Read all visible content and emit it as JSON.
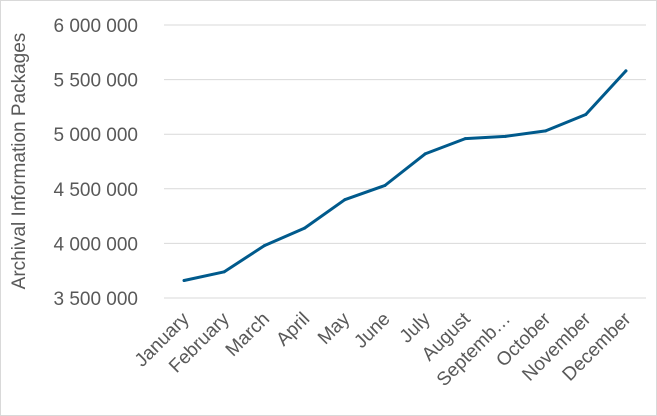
{
  "chart_data": {
    "type": "line",
    "categories": [
      "January",
      "February",
      "March",
      "April",
      "May",
      "June",
      "July",
      "August",
      "Septemb…",
      "October",
      "November",
      "December"
    ],
    "series": [
      {
        "values": [
          3660000,
          3740000,
          3980000,
          4140000,
          4400000,
          4530000,
          4820000,
          4960000,
          4980000,
          5030000,
          5180000,
          5580000
        ],
        "color": "#005a8c"
      }
    ],
    "ylabel": "Archival Information Packages",
    "ylim": [
      3500000,
      6000000
    ],
    "yticks": [
      3500000,
      4000000,
      4500000,
      5000000,
      5500000,
      6000000
    ],
    "ytick_labels": [
      "3 500 000",
      "4 000 000",
      "4 500 000",
      "5 000 000",
      "5 500 000",
      "6 000 000"
    ],
    "grid": true,
    "legend": "none"
  }
}
